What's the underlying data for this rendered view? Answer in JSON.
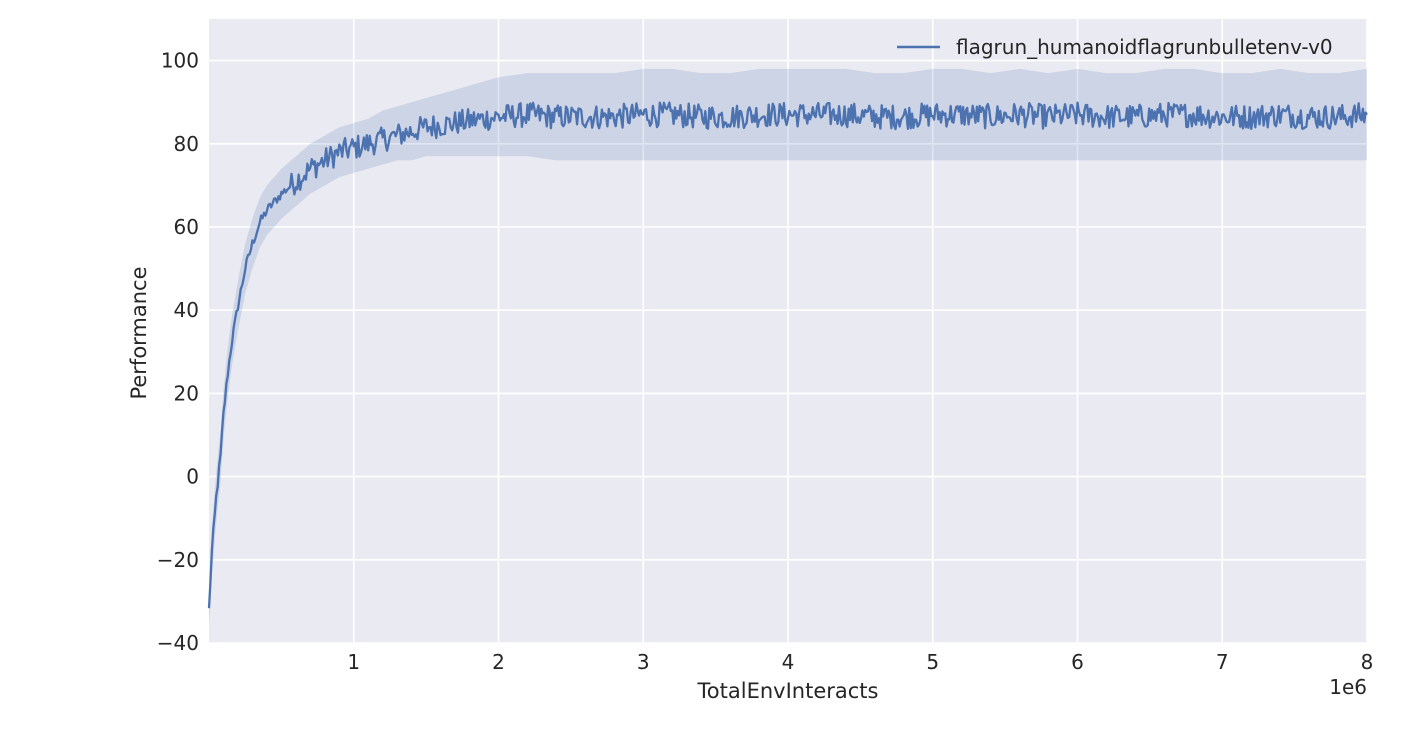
{
  "chart_data": {
    "type": "line",
    "title": "",
    "xlabel": "TotalEnvInteracts",
    "ylabel": "Performance",
    "x_offset_label": "1e6",
    "xlim": [
      0,
      8000000
    ],
    "ylim": [
      -40,
      110
    ],
    "x_ticks": [
      1000000,
      2000000,
      3000000,
      4000000,
      5000000,
      6000000,
      7000000,
      8000000
    ],
    "x_tick_labels": [
      "1",
      "2",
      "3",
      "4",
      "5",
      "6",
      "7",
      "8"
    ],
    "y_ticks": [
      -40,
      -20,
      0,
      20,
      40,
      60,
      80,
      100
    ],
    "y_tick_labels": [
      "−40",
      "−20",
      "0",
      "20",
      "40",
      "60",
      "80",
      "100"
    ],
    "grid": true,
    "legend": {
      "placement": "top-right",
      "entries": [
        "flagrun_humanoidflagrunbulletenv-v0"
      ]
    },
    "colors": {
      "plot_background": "#eaeaf2",
      "grid": "#ffffff",
      "line": "#4c72b0",
      "band": "#4c72b0"
    },
    "series": [
      {
        "name": "flagrun_humanoidflagrunbulletenv-v0",
        "x": [
          0,
          20000,
          50000,
          80000,
          100000,
          130000,
          160000,
          200000,
          250000,
          300000,
          350000,
          400000,
          450000,
          500000,
          600000,
          700000,
          800000,
          900000,
          1000000,
          1100000,
          1200000,
          1300000,
          1400000,
          1500000,
          1600000,
          1700000,
          1800000,
          1900000,
          2000000,
          2200000,
          2400000,
          2600000,
          2800000,
          3000000,
          3200000,
          3400000,
          3600000,
          3800000,
          4000000,
          4200000,
          4400000,
          4600000,
          4800000,
          5000000,
          5200000,
          5400000,
          5600000,
          5800000,
          6000000,
          6200000,
          6400000,
          6600000,
          6800000,
          7000000,
          7200000,
          7400000,
          7600000,
          7800000,
          8000000
        ],
        "y": [
          -32,
          -18,
          -5,
          5,
          15,
          25,
          33,
          41,
          50,
          56,
          61,
          64,
          66,
          68,
          71,
          74,
          76,
          78,
          79,
          80,
          81,
          82,
          83,
          84,
          84.5,
          85,
          85.5,
          86,
          86.5,
          87,
          86.5,
          86.5,
          86.5,
          87,
          87,
          86.5,
          86.5,
          87,
          87,
          87,
          87,
          86.5,
          86.5,
          87,
          87,
          86.5,
          87,
          86.5,
          87,
          86.5,
          86.5,
          87,
          87,
          86.5,
          86.5,
          87,
          86.5,
          86.5,
          87
        ],
        "band_lower": [
          -36,
          -24,
          -11,
          -1,
          9,
          19,
          27,
          35,
          44,
          50,
          55,
          58,
          60,
          62,
          65,
          68,
          70,
          72,
          73,
          74,
          75,
          76,
          76,
          77,
          77,
          77,
          77,
          77,
          77,
          77,
          76,
          76,
          76,
          76,
          76,
          76,
          76,
          76,
          76,
          76,
          76,
          76,
          76,
          76,
          76,
          76,
          76,
          76,
          76,
          76,
          76,
          76,
          76,
          76,
          76,
          76,
          76,
          76,
          76
        ],
        "band_upper": [
          -28,
          -12,
          1,
          11,
          21,
          31,
          39,
          47,
          56,
          62,
          67,
          70,
          72,
          74,
          77,
          80,
          82,
          84,
          85,
          86,
          88,
          89,
          90,
          91,
          92,
          93,
          94,
          95,
          96,
          97,
          97,
          97,
          97,
          98,
          98,
          97,
          97,
          98,
          98,
          98,
          98,
          97,
          97,
          98,
          98,
          97,
          98,
          97,
          98,
          97,
          97,
          98,
          98,
          97,
          97,
          98,
          97,
          97,
          98
        ]
      }
    ]
  }
}
